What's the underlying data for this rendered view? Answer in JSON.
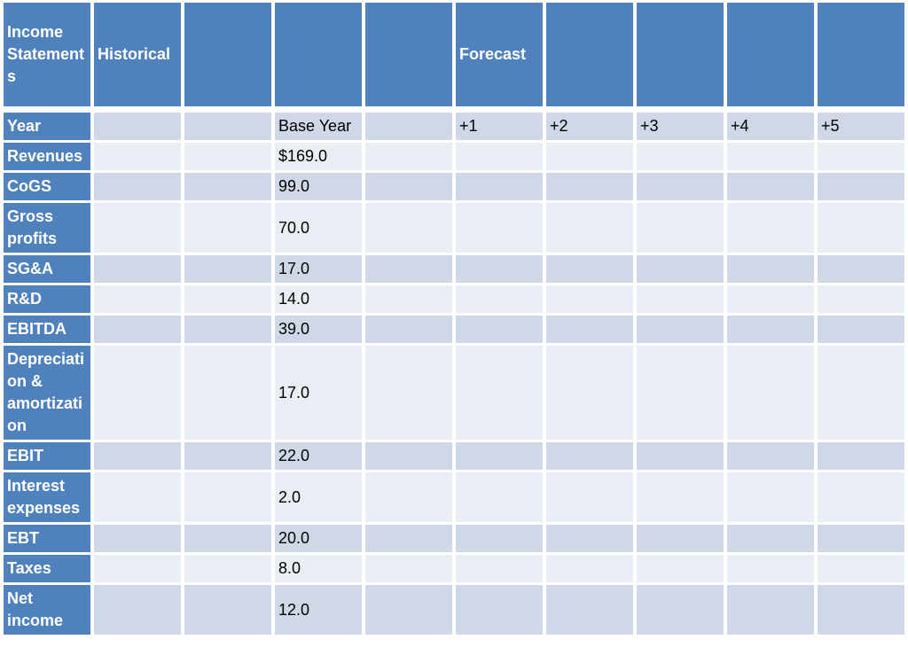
{
  "table": {
    "title": "Income Statements",
    "header_cells": [
      "Income Statements",
      "Historical",
      "",
      "",
      "",
      "Forecast",
      "",
      "",
      "",
      ""
    ],
    "body_rows": [
      {
        "label": "Year",
        "values": [
          "",
          "",
          "Base Year",
          "",
          "+1",
          "+2",
          "+3",
          "+4",
          "+5"
        ]
      },
      {
        "label": "Revenues",
        "values": [
          "",
          "",
          "$169.0",
          "",
          "",
          "",
          "",
          "",
          ""
        ]
      },
      {
        "label": "CoGS",
        "values": [
          "",
          "",
          "99.0",
          "",
          "",
          "",
          "",
          "",
          ""
        ]
      },
      {
        "label": "Gross profits",
        "values": [
          "",
          "",
          "70.0",
          "",
          "",
          "",
          "",
          "",
          ""
        ]
      },
      {
        "label": "SG&A",
        "values": [
          "",
          "",
          "17.0",
          "",
          "",
          "",
          "",
          "",
          ""
        ]
      },
      {
        "label": "R&D",
        "values": [
          "",
          "",
          "14.0",
          "",
          "",
          "",
          "",
          "",
          ""
        ]
      },
      {
        "label": "EBITDA",
        "values": [
          "",
          "",
          "39.0",
          "",
          "",
          "",
          "",
          "",
          ""
        ]
      },
      {
        "label": "Depreciation & amortization",
        "values": [
          "",
          "",
          "17.0",
          "",
          "",
          "",
          "",
          "",
          ""
        ]
      },
      {
        "label": "EBIT",
        "values": [
          "",
          "",
          "22.0",
          "",
          "",
          "",
          "",
          "",
          ""
        ]
      },
      {
        "label": "Interest expenses",
        "values": [
          "",
          "",
          "2.0",
          "",
          "",
          "",
          "",
          "",
          ""
        ]
      },
      {
        "label": "EBT",
        "values": [
          "",
          "",
          "20.0",
          "",
          "",
          "",
          "",
          "",
          ""
        ]
      },
      {
        "label": "Taxes",
        "values": [
          "",
          "",
          "8.0",
          "",
          "",
          "",
          "",
          "",
          ""
        ]
      },
      {
        "label": "Net income",
        "values": [
          "",
          "",
          "12.0",
          "",
          "",
          "",
          "",
          "",
          ""
        ]
      }
    ],
    "colors": {
      "header_blue": "#4F81BD",
      "band_dark": "#D0D8E8",
      "band_light": "#E9EDF4",
      "grid_white": "#FFFFFF",
      "header_text": "#FFFFFF",
      "body_text": "#000000"
    }
  }
}
